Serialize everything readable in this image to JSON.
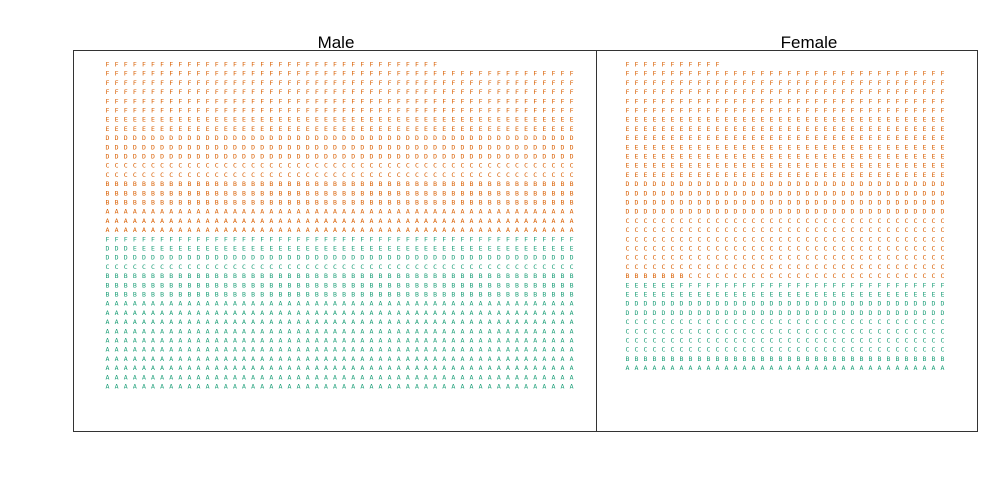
{
  "chart_data": {
    "type": "table",
    "letters": [
      "A",
      "B",
      "C",
      "D",
      "E",
      "F"
    ],
    "groups": [
      {
        "color": "#1b9e77"
      },
      {
        "color": "#d95f02"
      }
    ],
    "panels": [
      {
        "title": "Male",
        "columns": 52,
        "rows": [
          {
            "group": 1,
            "letters": "FFFFFFFFFFFFFFFFFFFFFFFFFFFFFFFFFFFFF"
          },
          {
            "group": 1,
            "letters": "FFFFFFFFFFFFFFFFFFFFFFFFFFFFFFFFFFFFFFFFFFFFFFFFFFFF"
          },
          {
            "group": 1,
            "letters": "FFFFFFFFFFFFFFFFFFFFFFFFFFFFFFFFFFFFFFFFFFFFFFFFFFFF"
          },
          {
            "group": 1,
            "letters": "FFFFFFFFFFFFFFFFFFFFFFFFFFFFFFFFFFFFFFFFFFFFFFFFFFFF"
          },
          {
            "group": 1,
            "letters": "FFFFFFFFFFFFFFFFFFFFFFFFFFFFFFFFFFFFFFFFFFFFFFFFFFFF"
          },
          {
            "group": 1,
            "letters": "FFFFFFFFFFFFFFFFFFFFFFFFFFFFFFFFFFFFFFFFFFFFFFFFFFFF"
          },
          {
            "group": 1,
            "letters": "EEEEEEEEEEEEEEEEEEEEEEEEEEEEEEEEEEEEEEEEEEEEEEEEEEEE"
          },
          {
            "group": 1,
            "letters": "EEEEEEEEEEEEEEEEEEEEEEEEEEEEEEEEEEEEEEEEEEEEEEEEEEEE"
          },
          {
            "group": 1,
            "letters": "DDDDDDDDDDDDDDDDDDDDDDDDDDDDDDDDDDDDDDDDDDDDDDDDDDDD"
          },
          {
            "group": 1,
            "letters": "DDDDDDDDDDDDDDDDDDDDDDDDDDDDDDDDDDDDDDDDDDDDDDDDDDDD"
          },
          {
            "group": 1,
            "letters": "DDDDDDDDDDDDDDDDDDDDDDDDDDDDDDDDDDDDDDDDDDDDDDDDDDDD"
          },
          {
            "group": 1,
            "letters": "CCCCCCCCCCCCCCCCCCCCCCCCCCCCCCCCCCCCCCCCCCCCCCCCCCCC"
          },
          {
            "group": 1,
            "letters": "CCCCCCCCCCCCCCCCCCCCCCCCCCCCCCCCCCCCCCCCCCCCCCCCCCCC"
          },
          {
            "group": 1,
            "letters": "BBBBBBBBBBBBBBBBBBBBBBBBBBBBBBBBBBBBBBBBBBBBBBBBBBBB"
          },
          {
            "group": 1,
            "letters": "BBBBBBBBBBBBBBBBBBBBBBBBBBBBBBBBBBBBBBBBBBBBBBBBBBBB"
          },
          {
            "group": 1,
            "letters": "BBBBBBBBBBBBBBBBBBBBBBBBBBBBBBBBBBBBBBBBBBBBBBBBBBBB"
          },
          {
            "group": 1,
            "letters": "AAAAAAAAAAAAAAAAAAAAAAAAAAAAAAAAAAAAAAAAAAAAAAAAAAAA"
          },
          {
            "group": 1,
            "letters": "AAAAAAAAAAAAAAAAAAAAAAAAAAAAAAAAAAAAAAAAAAAAAAAAAAAA"
          },
          {
            "group": 1,
            "letters": "AAAAAAAAAAAAAAAAAAAAAAAAAAAAAAAAAAAAAAAAAAAAAAAAAAAA"
          },
          {
            "group": 0,
            "letters": "FFFFFFFFFFFFFFFFFFFFFFFFFFFFFFFFFFFFFFFFFFFFFFFFFFFF"
          },
          {
            "group": 0,
            "letters": "DDDEEEEEEEEEEEEEEEEEEEEEEEEEEEEEEEEEEEEEEEEEEEEEEEEE"
          },
          {
            "group": 0,
            "letters": "DDDDDDDDDDDDDDDDDDDDDDDDDDDDDDDDDDDDDDDDDDDDDDDDDDDD"
          },
          {
            "group": 0,
            "letters": "CCCCCCCCCCCCCCCCCCCCCCCCCCCCCCCCCCCCCCCCCCCCCCCCCCCC"
          },
          {
            "group": 0,
            "letters": "BBBBBBBBBBBBBBBBBBBBBBBBBBBBBBBBBBBBBBBBBBBBBBBBBBBB"
          },
          {
            "group": 0,
            "letters": "BBBBBBBBBBBBBBBBBBBBBBBBBBBBBBBBBBBBBBBBBBBBBBBBBBBB"
          },
          {
            "group": 0,
            "letters": "BBBBBBBBBBBBBBBBBBBBBBBBBBBBBBBBBBBBBBBBBBBBBBBBBBBB"
          },
          {
            "group": 0,
            "letters": "AAAAAAAAAAAAAAAAAAAAAAAAAAAAAAAAAAAAAAAAAAAAAAAAAAAA"
          },
          {
            "group": 0,
            "letters": "AAAAAAAAAAAAAAAAAAAAAAAAAAAAAAAAAAAAAAAAAAAAAAAAAAAA"
          },
          {
            "group": 0,
            "letters": "AAAAAAAAAAAAAAAAAAAAAAAAAAAAAAAAAAAAAAAAAAAAAAAAAAAA"
          },
          {
            "group": 0,
            "letters": "AAAAAAAAAAAAAAAAAAAAAAAAAAAAAAAAAAAAAAAAAAAAAAAAAAAA"
          },
          {
            "group": 0,
            "letters": "AAAAAAAAAAAAAAAAAAAAAAAAAAAAAAAAAAAAAAAAAAAAAAAAAAAA"
          },
          {
            "group": 0,
            "letters": "AAAAAAAAAAAAAAAAAAAAAAAAAAAAAAAAAAAAAAAAAAAAAAAAAAAA"
          },
          {
            "group": 0,
            "letters": "AAAAAAAAAAAAAAAAAAAAAAAAAAAAAAAAAAAAAAAAAAAAAAAAAAAA"
          },
          {
            "group": 0,
            "letters": "AAAAAAAAAAAAAAAAAAAAAAAAAAAAAAAAAAAAAAAAAAAAAAAAAAAA"
          },
          {
            "group": 0,
            "letters": "AAAAAAAAAAAAAAAAAAAAAAAAAAAAAAAAAAAAAAAAAAAAAAAAAAAA"
          },
          {
            "group": 0,
            "letters": "AAAAAAAAAAAAAAAAAAAAAAAAAAAAAAAAAAAAAAAAAAAAAAAAAAAA"
          }
        ]
      },
      {
        "title": "Female",
        "columns": 36,
        "rows": [
          {
            "group": 1,
            "letters": "FFFFFFFFFFF"
          },
          {
            "group": 1,
            "letters": "FFFFFFFFFFFFFFFFFFFFFFFFFFFFFFFFFFFF"
          },
          {
            "group": 1,
            "letters": "FFFFFFFFFFFFFFFFFFFFFFFFFFFFFFFFFFFF"
          },
          {
            "group": 1,
            "letters": "FFFFFFFFFFFFFFFFFFFFFFFFFFFFFFFFFFFF"
          },
          {
            "group": 1,
            "letters": "FFFFFFFFFFFFFFFFFFFFFFFFFFFFFFFFFFFF"
          },
          {
            "group": 1,
            "letters": "FFFFFFFFFFFFFFFFFFFFFFFFFFFFFFFFFFFF"
          },
          {
            "group": 1,
            "letters": "EEEEEEEEEEEEEEEEEEEEEEEEEEEEEEEEEEEE"
          },
          {
            "group": 1,
            "letters": "EEEEEEEEEEEEEEEEEEEEEEEEEEEEEEEEEEEE"
          },
          {
            "group": 1,
            "letters": "EEEEEEEEEEEEEEEEEEEEEEEEEEEEEEEEEEEE"
          },
          {
            "group": 1,
            "letters": "EEEEEEEEEEEEEEEEEEEEEEEEEEEEEEEEEEEE"
          },
          {
            "group": 1,
            "letters": "EEEEEEEEEEEEEEEEEEEEEEEEEEEEEEEEEEEE"
          },
          {
            "group": 1,
            "letters": "EEEEEEEEEEEEEEEEEEEEEEEEEEEEEEEEEEEE"
          },
          {
            "group": 1,
            "letters": "EEEEEEEEEEEEEEEEEEEEEEEEEEEEEEEEEEEE"
          },
          {
            "group": 1,
            "letters": "DDDDDDDDDDDDDDDDDDDDDDDDDDDDDDDDDDDD"
          },
          {
            "group": 1,
            "letters": "DDDDDDDDDDDDDDDDDDDDDDDDDDDDDDDDDDDD"
          },
          {
            "group": 1,
            "letters": "DDDDDDDDDDDDDDDDDDDDDDDDDDDDDDDDDDDD"
          },
          {
            "group": 1,
            "letters": "DDDDDDDDDDDDDDDDDDDDDDDDDDDDDDDDDDDD"
          },
          {
            "group": 1,
            "letters": "CCCCCCCCCCCCCCCCCCCCCCCCCCCCCCCCCCCC"
          },
          {
            "group": 1,
            "letters": "CCCCCCCCCCCCCCCCCCCCCCCCCCCCCCCCCCCC"
          },
          {
            "group": 1,
            "letters": "CCCCCCCCCCCCCCCCCCCCCCCCCCCCCCCCCCCC"
          },
          {
            "group": 1,
            "letters": "CCCCCCCCCCCCCCCCCCCCCCCCCCCCCCCCCCCC"
          },
          {
            "group": 1,
            "letters": "CCCCCCCCCCCCCCCCCCCCCCCCCCCCCCCCCCCC"
          },
          {
            "group": 1,
            "letters": "CCCCCCCCCCCCCCCCCCCCCCCCCCCCCCCCCCCC"
          },
          {
            "group": 1,
            "letters": "BBBBBBBCCCCCCCCCCCCCCCCCCCCCCCCCCCCC"
          },
          {
            "group": 0,
            "letters": "EEEEEEFFFFFFFFFFFFFFFFFFFFFFFFFFFFFF"
          },
          {
            "group": 0,
            "letters": "EEEEEEEEEEEEEEEEEEEEEEEEEEEEEEEEEEEE"
          },
          {
            "group": 0,
            "letters": "DDDDDDDDDDDDDDDDDDDDDDDDDDDDDDDDDDDD"
          },
          {
            "group": 0,
            "letters": "DDDDDDDDDDDDDDDDDDDDDDDDDDDDDDDDDDDD"
          },
          {
            "group": 0,
            "letters": "CCCCCCCCCCCCCCCCCCCCCCCCCCCCCCCCCCCC"
          },
          {
            "group": 0,
            "letters": "CCCCCCCCCCCCCCCCCCCCCCCCCCCCCCCCCCCC"
          },
          {
            "group": 0,
            "letters": "CCCCCCCCCCCCCCCCCCCCCCCCCCCCCCCCCCCC"
          },
          {
            "group": 0,
            "letters": "CCCCCCCCCCCCCCCCCCCCCCCCCCCCCCCCCCCC"
          },
          {
            "group": 0,
            "letters": "BBBBBBBBBBBBBBBBBBBBBBBBBBBBBBBBBBBB"
          },
          {
            "group": 0,
            "letters": "AAAAAAAAAAAAAAAAAAAAAAAAAAAAAAAAAAAA"
          }
        ]
      }
    ]
  }
}
